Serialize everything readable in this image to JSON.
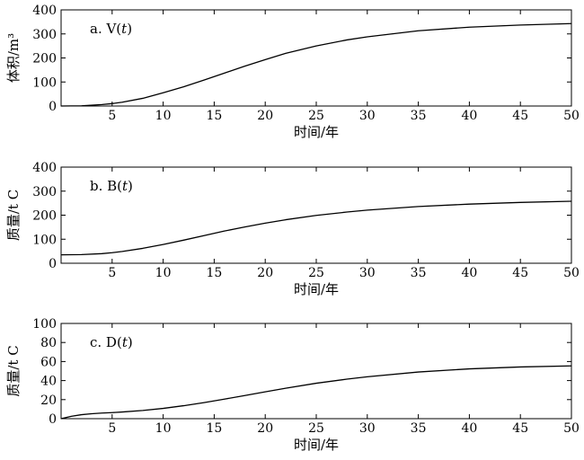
{
  "chart_data": [
    {
      "type": "line",
      "panel_label": "a. V(t)",
      "ylabel": "体积/m³",
      "xlabel": "时间/年",
      "xlim": [
        0,
        50
      ],
      "ylim": [
        0,
        400
      ],
      "xticks": [
        5,
        10,
        15,
        20,
        25,
        30,
        35,
        40,
        45,
        50
      ],
      "yticks": [
        0,
        100,
        200,
        300,
        400
      ],
      "grid": false,
      "series": [
        {
          "x": [
            0,
            2,
            4,
            5,
            6,
            8,
            10,
            12,
            14,
            16,
            18,
            20,
            22,
            25,
            28,
            30,
            35,
            40,
            45,
            50
          ],
          "y": [
            0,
            1,
            6,
            10,
            16,
            32,
            55,
            80,
            108,
            137,
            166,
            193,
            219,
            250,
            275,
            288,
            313,
            328,
            337,
            343
          ]
        }
      ]
    },
    {
      "type": "line",
      "panel_label": "b. B(t)",
      "ylabel": "质量/t C",
      "xlabel": "时间/年",
      "xlim": [
        0,
        50
      ],
      "ylim": [
        0,
        400
      ],
      "xticks": [
        5,
        10,
        15,
        20,
        25,
        30,
        35,
        40,
        45,
        50
      ],
      "yticks": [
        0,
        100,
        200,
        300,
        400
      ],
      "grid": false,
      "series": [
        {
          "x": [
            0,
            2,
            4,
            5,
            6,
            8,
            10,
            12,
            14,
            16,
            18,
            20,
            22,
            25,
            28,
            30,
            35,
            40,
            45,
            50
          ],
          "y": [
            35,
            36,
            40,
            44,
            49,
            62,
            78,
            96,
            115,
            134,
            151,
            167,
            181,
            199,
            213,
            221,
            236,
            246,
            253,
            258
          ]
        }
      ]
    },
    {
      "type": "line",
      "panel_label": "c. D(t)",
      "ylabel": "质量/t C",
      "xlabel": "时间/年",
      "xlim": [
        0,
        50
      ],
      "ylim": [
        0,
        100
      ],
      "xticks": [
        5,
        10,
        15,
        20,
        25,
        30,
        35,
        40,
        45,
        50
      ],
      "yticks": [
        0,
        20,
        40,
        60,
        80,
        100
      ],
      "grid": false,
      "series": [
        {
          "x": [
            0,
            1,
            2,
            3,
            4,
            5,
            6,
            8,
            10,
            12,
            14,
            16,
            18,
            20,
            22,
            25,
            28,
            30,
            35,
            40,
            45,
            50
          ],
          "y": [
            0,
            2.5,
            4.2,
            5.2,
            5.9,
            6.4,
            7.0,
            8.6,
            10.8,
            13.6,
            16.9,
            20.5,
            24.3,
            28.2,
            32.0,
            37.2,
            41.5,
            44.0,
            49.0,
            52.3,
            54.3,
            55.4
          ]
        }
      ]
    }
  ]
}
